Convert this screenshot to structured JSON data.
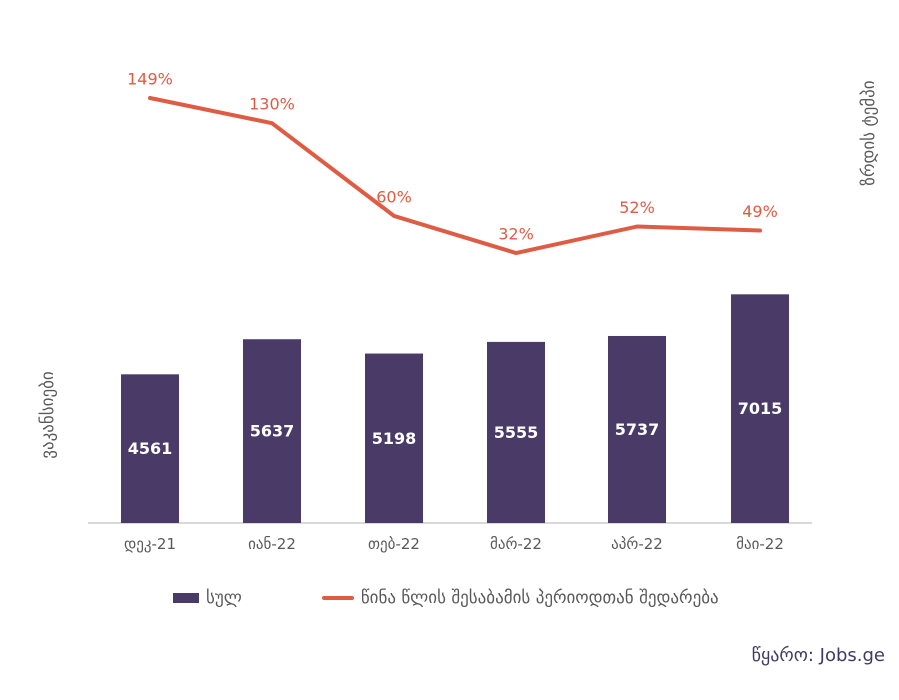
{
  "source": "წყარო: Jobs.ge",
  "chart_data": {
    "type": "bar",
    "subtype": "bar-line-combo",
    "categories": [
      "დეკ-21",
      "იან-22",
      "თებ-22",
      "მარ-22",
      "აპრ-22",
      "მაი-22"
    ],
    "series": [
      {
        "name": "სულ",
        "type": "bar",
        "values": [
          4561,
          5637,
          5198,
          5555,
          5737,
          7015
        ]
      },
      {
        "name": "წინა წლის შესაბამის პერიოდთან შედარება",
        "type": "line",
        "values_pct": [
          149,
          130,
          60,
          32,
          52,
          49
        ],
        "labels": [
          "149%",
          "130%",
          "60%",
          "32%",
          "52%",
          "49%"
        ]
      }
    ],
    "title": "",
    "xlabel": "",
    "ylabel": "ვაკანსიები",
    "y2label": "ზრდის ტემპი",
    "legend": [
      "სულ",
      "წინა წლის შესაბამის პერიოდთან შედარება"
    ],
    "legend_position": "bottom",
    "grid": false,
    "bar_value_labels_inside": true,
    "colors": {
      "bar": "#4A3A68",
      "line": "#DF5C44",
      "pct_label": "#DF5C44",
      "axis_text": "#595959",
      "axis_line": "#D9D9D9",
      "bar_label": "#FFFFFF",
      "source_text": "#3F3B63"
    }
  }
}
